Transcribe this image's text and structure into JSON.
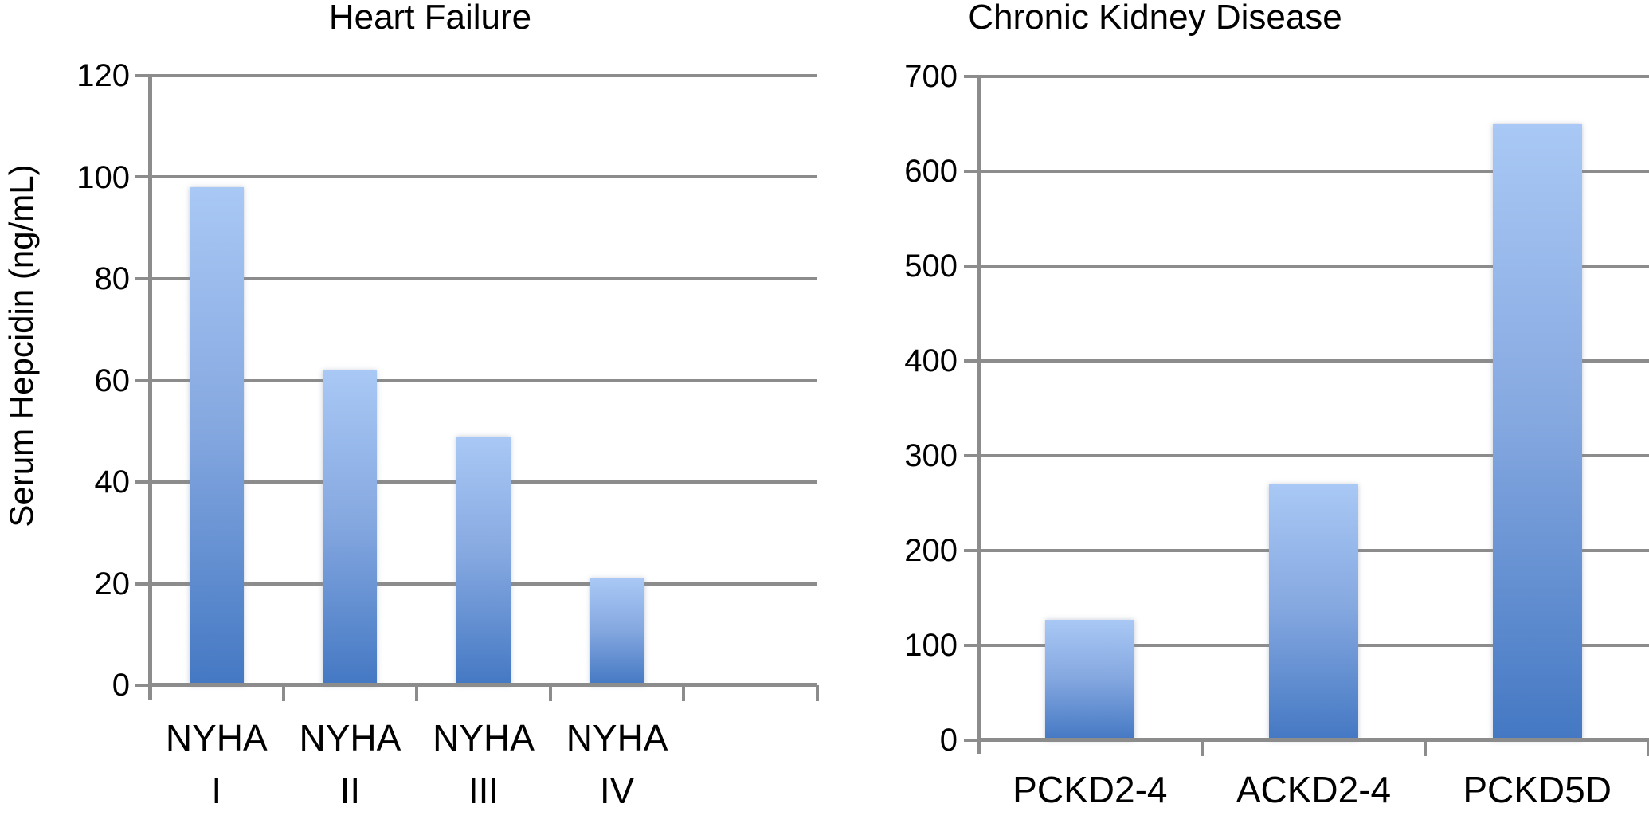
{
  "figure": {
    "background": "#ffffff",
    "text_color": "#000000",
    "gridline_color": "#8c8c8c",
    "bar_gradient_top": "#a9c8f5",
    "bar_gradient_bottom": "#4478c3"
  },
  "chart_data": [
    {
      "type": "bar",
      "title": "Heart Failure",
      "ylabel": "Serum Hepcidin (ng/mL)",
      "xlabel": "",
      "categories": [
        "NYHA I",
        "NYHA II",
        "NYHA III",
        "NYHA IV"
      ],
      "values": [
        98,
        62,
        49,
        21
      ],
      "ylim": [
        0,
        120
      ],
      "ytick_step": 20,
      "ytick_labels": [
        "0",
        "20",
        "40",
        "60",
        "80",
        "100",
        "120"
      ],
      "num_slots": 5,
      "grid": "horizontal",
      "legend": "none"
    },
    {
      "type": "bar",
      "title": "Chronic Kidney Disease",
      "ylabel": "",
      "xlabel": "",
      "categories": [
        "PCKD2-4",
        "ACKD2-4",
        "PCKD5D"
      ],
      "values": [
        127,
        270,
        650
      ],
      "ylim": [
        0,
        700
      ],
      "ytick_step": 100,
      "ytick_labels": [
        "0",
        "100",
        "200",
        "300",
        "400",
        "500",
        "600",
        "700"
      ],
      "num_slots": 3,
      "grid": "horizontal",
      "legend": "none"
    }
  ]
}
